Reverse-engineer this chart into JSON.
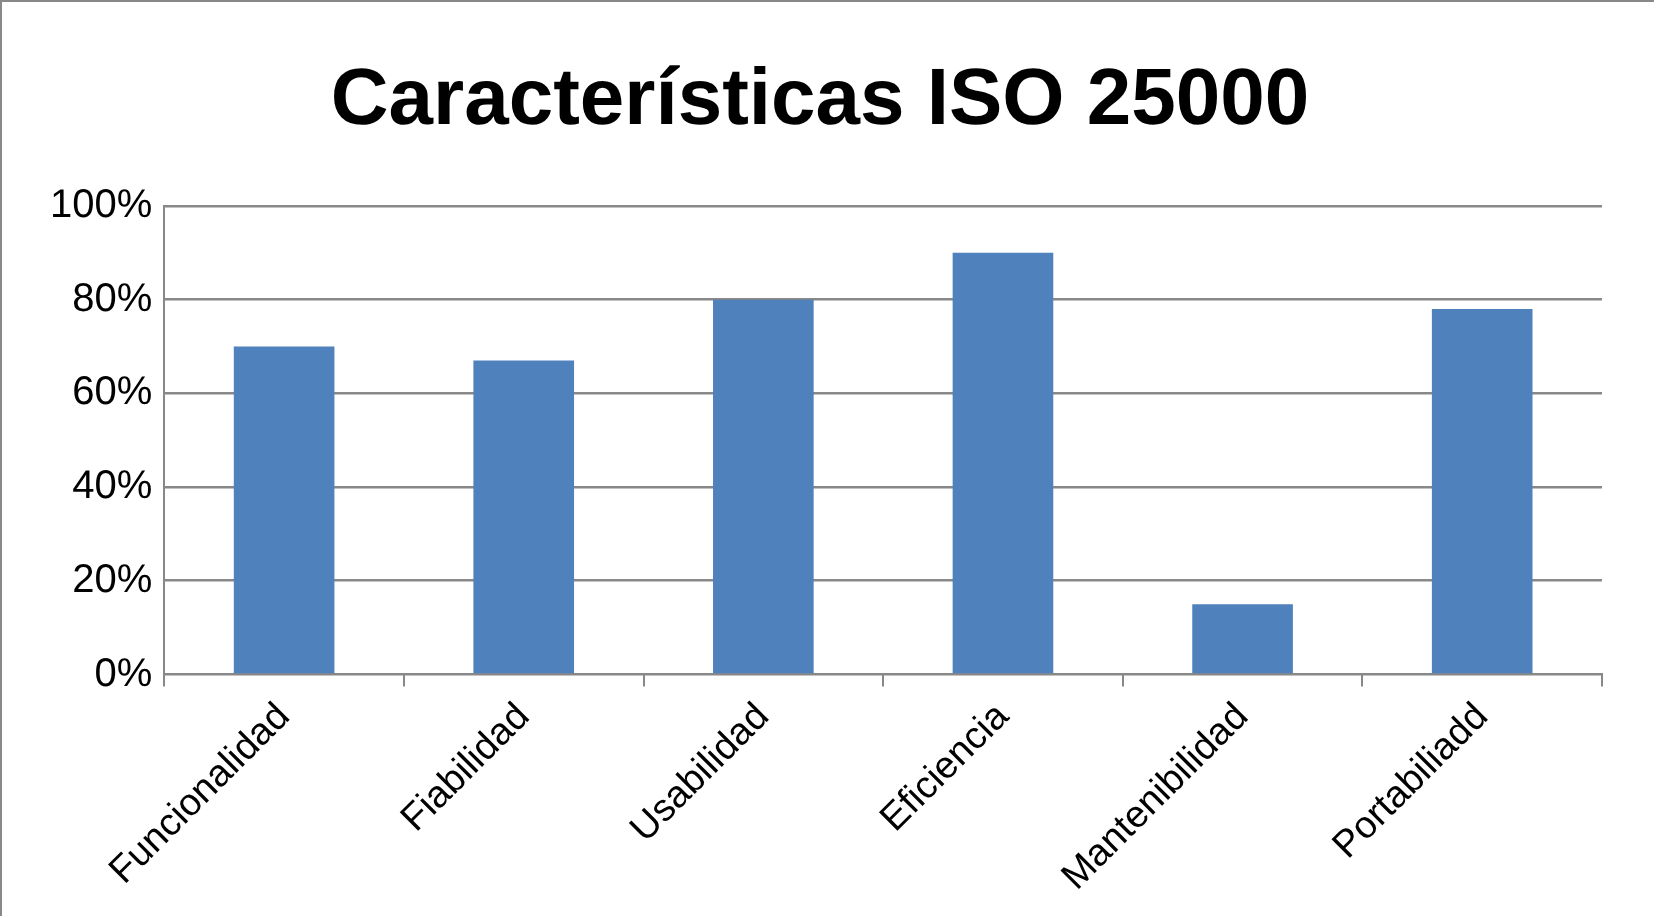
{
  "chart_data": {
    "type": "bar",
    "title": "Características ISO 25000",
    "categories": [
      "Funcionalidad",
      "Fiabilidad",
      "Usabilidad",
      "Eficiencia",
      "Mantenibilidad",
      "Portabiliadd"
    ],
    "values": [
      70,
      67,
      80,
      90,
      15,
      78
    ],
    "color": "#4f81bd",
    "ylim": [
      0,
      100
    ],
    "yticks": [
      {
        "value": 0,
        "label": "0%"
      },
      {
        "value": 20,
        "label": "20%"
      },
      {
        "value": 40,
        "label": "40%"
      },
      {
        "value": 60,
        "label": "60%"
      },
      {
        "value": 80,
        "label": "80%"
      },
      {
        "value": 100,
        "label": "100%"
      }
    ],
    "grid": "y",
    "legend": false
  }
}
